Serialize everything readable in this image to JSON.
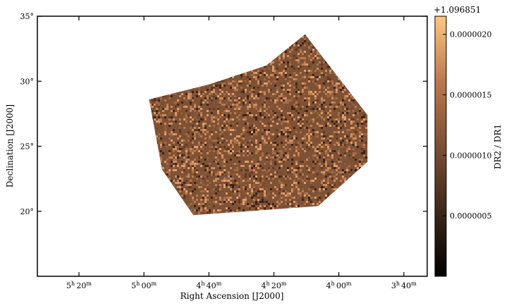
{
  "chart_data": {
    "type": "heatmap",
    "title": "",
    "xlabel": "Right Ascension [J2000]",
    "ylabel": "Declination [J2000]",
    "x_ticks": [
      {
        "ra_hours": 5.3333,
        "h": "5",
        "m": "20"
      },
      {
        "ra_hours": 5.0,
        "h": "5",
        "m": "00"
      },
      {
        "ra_hours": 4.6667,
        "h": "4",
        "m": "40"
      },
      {
        "ra_hours": 4.3333,
        "h": "4",
        "m": "20"
      },
      {
        "ra_hours": 4.0,
        "h": "4",
        "m": "00"
      },
      {
        "ra_hours": 3.6667,
        "h": "3",
        "m": "40"
      }
    ],
    "y_ticks": [
      {
        "dec": 20,
        "label": "20°"
      },
      {
        "dec": 25,
        "label": "25°"
      },
      {
        "dec": 30,
        "label": "30°"
      },
      {
        "dec": 35,
        "label": "35°"
      }
    ],
    "xlim_hours": [
      5.5467,
      3.5467
    ],
    "ylim_deg": [
      15,
      35
    ],
    "footprint_polygon": [
      [
        4.9733,
        28.6
      ],
      [
        4.6667,
        29.75
      ],
      [
        4.3733,
        31.2
      ],
      [
        4.1733,
        33.6
      ],
      [
        3.8533,
        27.4
      ],
      [
        3.8533,
        23.8
      ],
      [
        4.1067,
        20.4
      ],
      [
        4.7467,
        19.7
      ],
      [
        4.9067,
        23.2
      ],
      [
        4.9733,
        28.6
      ]
    ],
    "colorbar": {
      "label": "DR2 / DR1",
      "offset_label": "+1.096851",
      "ticks": [
        {
          "value": 5e-07,
          "label": "0.0000005"
        },
        {
          "value": 1e-06,
          "label": "0.0000010"
        },
        {
          "value": 1.5e-06,
          "label": "0.0000015"
        },
        {
          "value": 2e-06,
          "label": "0.0000020"
        }
      ],
      "range": [
        0.0,
        2.15e-06
      ],
      "colormap": "copper",
      "colors": [
        "#000000",
        "#4a2e1d",
        "#8f5a39",
        "#d08255",
        "#ffc77f"
      ]
    },
    "grid": false
  }
}
